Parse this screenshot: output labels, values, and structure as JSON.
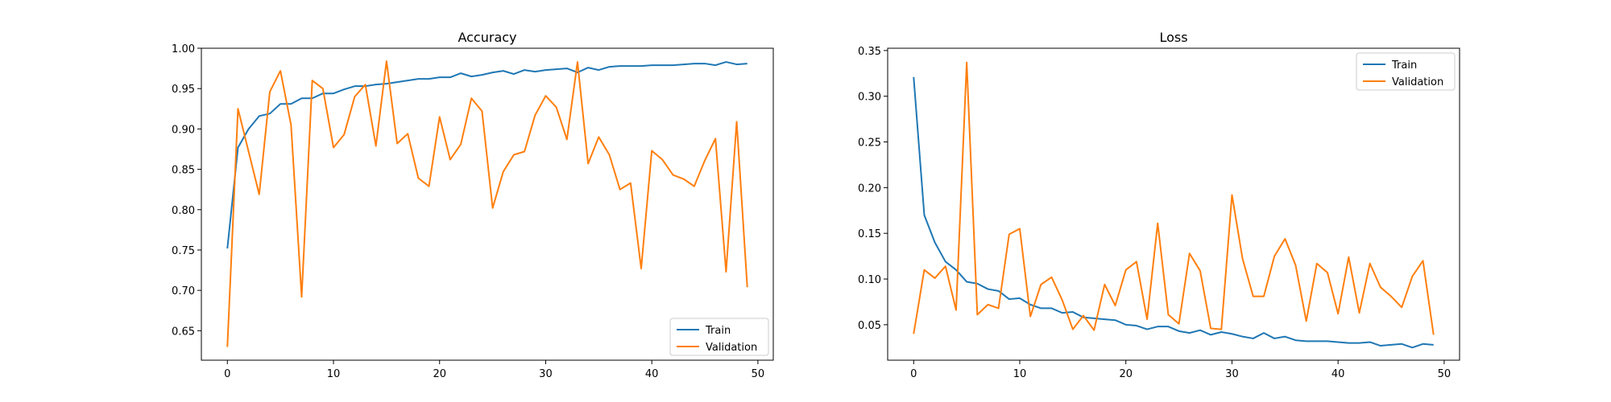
{
  "chart_data": [
    {
      "type": "line",
      "title": "Accuracy",
      "xlabel": "",
      "ylabel": "",
      "xlim": [
        -2.45,
        51.45
      ],
      "ylim": [
        0.6135,
        1.0
      ],
      "xticks": [
        0,
        10,
        20,
        30,
        40,
        50
      ],
      "yticks": [
        0.65,
        0.7,
        0.75,
        0.8,
        0.85,
        0.9,
        0.95,
        1.0
      ],
      "ytick_labels": [
        "0.65",
        "0.70",
        "0.75",
        "0.80",
        "0.85",
        "0.90",
        "0.95",
        "1.00"
      ],
      "grid": false,
      "legend_position": "lower-right",
      "series": [
        {
          "name": "Train",
          "color": "#1f77b4",
          "x": [
            0,
            1,
            2,
            3,
            4,
            5,
            6,
            7,
            8,
            9,
            10,
            11,
            12,
            13,
            14,
            15,
            16,
            17,
            18,
            19,
            20,
            21,
            22,
            23,
            24,
            25,
            26,
            27,
            28,
            29,
            30,
            31,
            32,
            33,
            34,
            35,
            36,
            37,
            38,
            39,
            40,
            41,
            42,
            43,
            44,
            45,
            46,
            47,
            48,
            49
          ],
          "values": [
            0.752,
            0.877,
            0.9,
            0.916,
            0.919,
            0.931,
            0.931,
            0.938,
            0.938,
            0.944,
            0.944,
            0.949,
            0.953,
            0.953,
            0.955,
            0.956,
            0.958,
            0.96,
            0.962,
            0.962,
            0.964,
            0.964,
            0.969,
            0.965,
            0.967,
            0.97,
            0.972,
            0.968,
            0.973,
            0.971,
            0.973,
            0.974,
            0.975,
            0.97,
            0.976,
            0.973,
            0.977,
            0.978,
            0.978,
            0.978,
            0.979,
            0.979,
            0.979,
            0.98,
            0.981,
            0.981,
            0.979,
            0.983,
            0.98,
            0.981
          ]
        },
        {
          "name": "Validation",
          "color": "#ff7f0e",
          "x": [
            0,
            1,
            2,
            3,
            4,
            5,
            6,
            7,
            8,
            9,
            10,
            11,
            12,
            13,
            14,
            15,
            16,
            17,
            18,
            19,
            20,
            21,
            22,
            23,
            24,
            25,
            26,
            27,
            28,
            29,
            30,
            31,
            32,
            33,
            34,
            35,
            36,
            37,
            38,
            39,
            40,
            41,
            42,
            43,
            44,
            45,
            46,
            47,
            48,
            49
          ],
          "values": [
            0.63,
            0.925,
            0.872,
            0.819,
            0.946,
            0.972,
            0.905,
            0.692,
            0.96,
            0.95,
            0.877,
            0.893,
            0.94,
            0.955,
            0.879,
            0.984,
            0.882,
            0.894,
            0.839,
            0.829,
            0.915,
            0.862,
            0.881,
            0.938,
            0.922,
            0.802,
            0.847,
            0.868,
            0.872,
            0.917,
            0.941,
            0.927,
            0.887,
            0.983,
            0.857,
            0.89,
            0.868,
            0.825,
            0.833,
            0.727,
            0.873,
            0.862,
            0.843,
            0.838,
            0.829,
            0.861,
            0.888,
            0.723,
            0.909,
            0.704
          ]
        }
      ]
    },
    {
      "type": "line",
      "title": "Loss",
      "xlabel": "",
      "ylabel": "",
      "xlim": [
        -2.45,
        51.45
      ],
      "ylim": [
        0.0112,
        0.3525
      ],
      "xticks": [
        0,
        10,
        20,
        30,
        40,
        50
      ],
      "yticks": [
        0.05,
        0.1,
        0.15,
        0.2,
        0.25,
        0.3,
        0.35
      ],
      "ytick_labels": [
        "0.05",
        "0.10",
        "0.15",
        "0.20",
        "0.25",
        "0.30",
        "0.35"
      ],
      "grid": false,
      "legend_position": "upper-right",
      "series": [
        {
          "name": "Train",
          "color": "#1f77b4",
          "x": [
            0,
            1,
            2,
            3,
            4,
            5,
            6,
            7,
            8,
            9,
            10,
            11,
            12,
            13,
            14,
            15,
            16,
            17,
            18,
            19,
            20,
            21,
            22,
            23,
            24,
            25,
            26,
            27,
            28,
            29,
            30,
            31,
            32,
            33,
            34,
            35,
            36,
            37,
            38,
            39,
            40,
            41,
            42,
            43,
            44,
            45,
            46,
            47,
            48,
            49
          ],
          "values": [
            0.321,
            0.17,
            0.14,
            0.119,
            0.11,
            0.097,
            0.095,
            0.089,
            0.087,
            0.078,
            0.079,
            0.072,
            0.068,
            0.068,
            0.063,
            0.064,
            0.058,
            0.057,
            0.056,
            0.055,
            0.05,
            0.049,
            0.045,
            0.048,
            0.048,
            0.043,
            0.041,
            0.044,
            0.039,
            0.042,
            0.04,
            0.037,
            0.035,
            0.041,
            0.035,
            0.037,
            0.033,
            0.032,
            0.032,
            0.032,
            0.031,
            0.03,
            0.03,
            0.031,
            0.027,
            0.028,
            0.029,
            0.025,
            0.029,
            0.028
          ]
        },
        {
          "name": "Validation",
          "color": "#ff7f0e",
          "x": [
            0,
            1,
            2,
            3,
            4,
            5,
            6,
            7,
            8,
            9,
            10,
            11,
            12,
            13,
            14,
            15,
            16,
            17,
            18,
            19,
            20,
            21,
            22,
            23,
            24,
            25,
            26,
            27,
            28,
            29,
            30,
            31,
            32,
            33,
            34,
            35,
            36,
            37,
            38,
            39,
            40,
            41,
            42,
            43,
            44,
            45,
            46,
            47,
            48,
            49
          ],
          "values": [
            0.04,
            0.11,
            0.101,
            0.114,
            0.066,
            0.337,
            0.061,
            0.072,
            0.068,
            0.149,
            0.155,
            0.059,
            0.094,
            0.102,
            0.077,
            0.045,
            0.06,
            0.044,
            0.094,
            0.071,
            0.11,
            0.119,
            0.056,
            0.161,
            0.061,
            0.051,
            0.128,
            0.109,
            0.046,
            0.045,
            0.192,
            0.122,
            0.081,
            0.081,
            0.125,
            0.144,
            0.115,
            0.054,
            0.117,
            0.107,
            0.062,
            0.124,
            0.063,
            0.117,
            0.091,
            0.081,
            0.069,
            0.103,
            0.12,
            0.039
          ]
        }
      ]
    }
  ]
}
